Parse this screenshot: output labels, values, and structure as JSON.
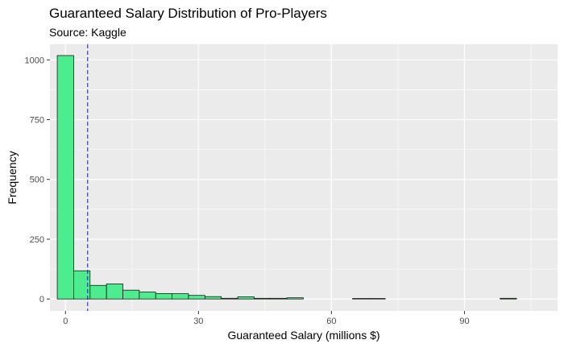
{
  "chart_data": {
    "type": "histogram",
    "title": "Guaranteed Salary Distribution of Pro-Players",
    "subtitle": "Source: Kaggle",
    "xlabel": "Guaranteed Salary (millions $)",
    "ylabel": "Frequency",
    "xlim": [
      -3.5,
      111
    ],
    "ylim": [
      -50,
      1065
    ],
    "x_ticks": [
      0,
      30,
      60,
      90
    ],
    "y_ticks": [
      0,
      250,
      500,
      750,
      1000
    ],
    "grid": true,
    "legend": "none",
    "bin_width": 3.7,
    "bins": [
      {
        "x_start": -1.85,
        "x_end": 1.85,
        "count": 1018
      },
      {
        "x_start": 1.85,
        "x_end": 5.55,
        "count": 118
      },
      {
        "x_start": 5.55,
        "x_end": 9.25,
        "count": 57
      },
      {
        "x_start": 9.25,
        "x_end": 12.95,
        "count": 63
      },
      {
        "x_start": 12.95,
        "x_end": 16.65,
        "count": 37
      },
      {
        "x_start": 16.65,
        "x_end": 20.35,
        "count": 29
      },
      {
        "x_start": 20.35,
        "x_end": 24.05,
        "count": 23
      },
      {
        "x_start": 24.05,
        "x_end": 27.75,
        "count": 22
      },
      {
        "x_start": 27.75,
        "x_end": 31.45,
        "count": 15
      },
      {
        "x_start": 31.45,
        "x_end": 35.15,
        "count": 10
      },
      {
        "x_start": 35.15,
        "x_end": 38.85,
        "count": 3
      },
      {
        "x_start": 38.85,
        "x_end": 42.55,
        "count": 9
      },
      {
        "x_start": 42.55,
        "x_end": 46.25,
        "count": 3
      },
      {
        "x_start": 46.25,
        "x_end": 49.95,
        "count": 3
      },
      {
        "x_start": 49.95,
        "x_end": 53.65,
        "count": 5
      },
      {
        "x_start": 53.65,
        "x_end": 57.35,
        "count": 0
      },
      {
        "x_start": 57.35,
        "x_end": 61.05,
        "count": 0
      },
      {
        "x_start": 61.05,
        "x_end": 64.75,
        "count": 0
      },
      {
        "x_start": 64.75,
        "x_end": 68.45,
        "count": 2
      },
      {
        "x_start": 68.45,
        "x_end": 72.15,
        "count": 2
      },
      {
        "x_start": 72.15,
        "x_end": 75.85,
        "count": 0
      },
      {
        "x_start": 75.85,
        "x_end": 79.55,
        "count": 0
      },
      {
        "x_start": 79.55,
        "x_end": 83.25,
        "count": 0
      },
      {
        "x_start": 83.25,
        "x_end": 86.95,
        "count": 0
      },
      {
        "x_start": 86.95,
        "x_end": 90.65,
        "count": 0
      },
      {
        "x_start": 90.65,
        "x_end": 94.35,
        "count": 0
      },
      {
        "x_start": 94.35,
        "x_end": 98.05,
        "count": 0
      },
      {
        "x_start": 98.05,
        "x_end": 101.75,
        "count": 3
      },
      {
        "x_start": 101.75,
        "x_end": 105.45,
        "count": 0
      },
      {
        "x_start": 105.45,
        "x_end": 109.15,
        "count": 0
      }
    ],
    "reference_line": {
      "x": 5,
      "style": "dashed"
    },
    "colors": {
      "bar_fill": "#4ded8f",
      "bar_outline": "#000000",
      "reference_line": "#1a1aa0",
      "panel_background": "#ebebeb",
      "grid": "#ffffff"
    }
  }
}
